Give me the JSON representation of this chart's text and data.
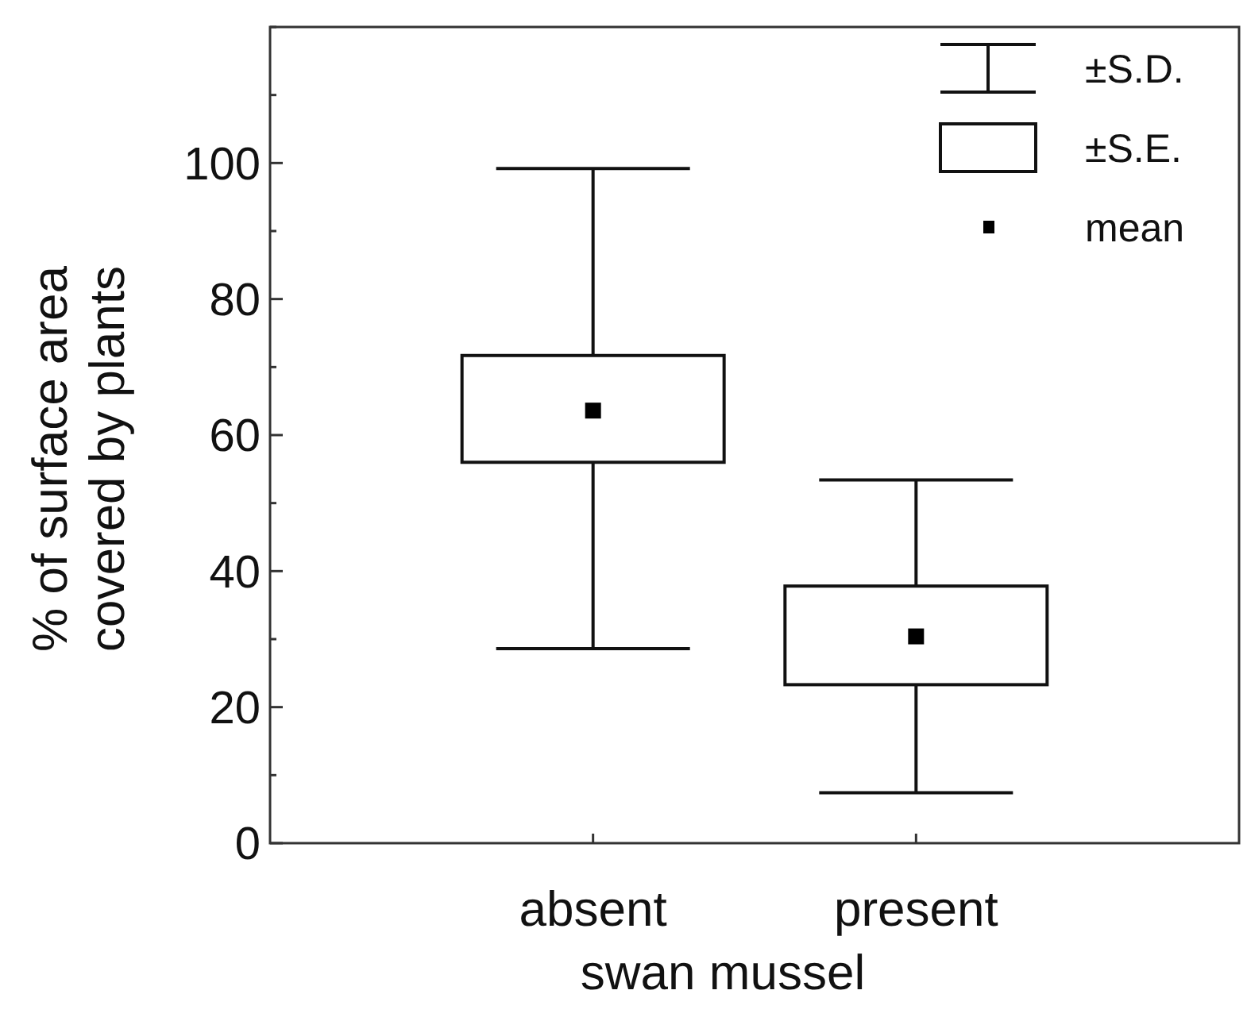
{
  "chart_data": {
    "type": "box",
    "xlabel": "swan mussel",
    "ylabel": "% of surface area\ncovered by plants",
    "categories": [
      "absent",
      "present"
    ],
    "boxes": [
      {
        "low": 28.6,
        "q1": 56,
        "median": 63.6,
        "q3": 71.7,
        "high": 99.2
      },
      {
        "low": 7.4,
        "q1": 23.3,
        "median": 30.4,
        "q3": 37.8,
        "high": 53.4
      }
    ],
    "ylim": [
      0,
      120
    ],
    "yticks": [
      0,
      {
        "value": 10,
        "label": null
      },
      20,
      {
        "value": 30,
        "label": null
      },
      40,
      {
        "value": 50,
        "label": null
      },
      60,
      {
        "value": 70,
        "label": null
      },
      80,
      {
        "value": 90,
        "label": null
      },
      100,
      {
        "value": 110,
        "label": null
      },
      {
        "value": 120,
        "label": null
      }
    ],
    "annotations": [
      "±S.D.",
      "±S.E.",
      "mean"
    ],
    "grid": false
  }
}
